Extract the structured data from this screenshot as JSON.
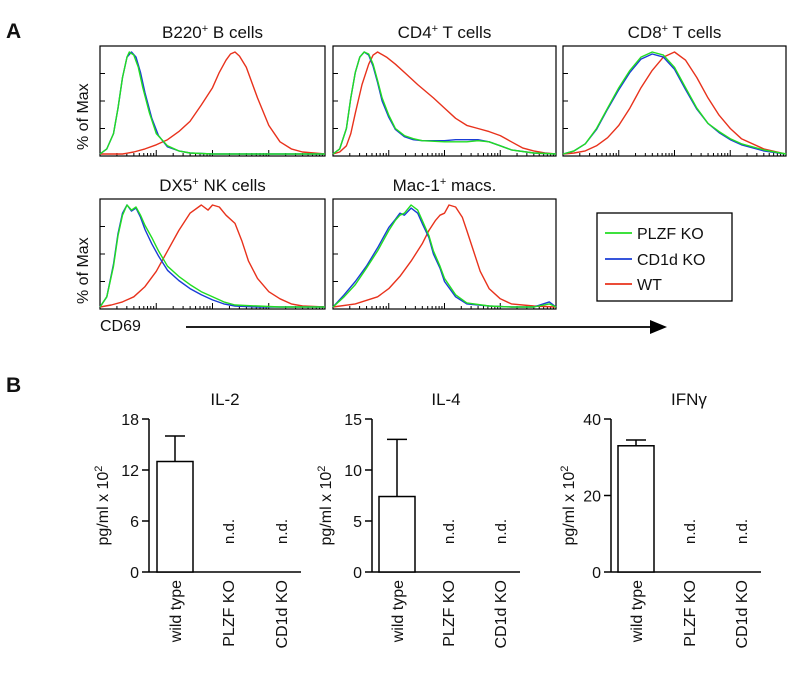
{
  "panel_a": {
    "letter": "A",
    "y_axis_label": "% of Max",
    "x_axis_label": "CD69",
    "legend": [
      {
        "label": "PLZF KO",
        "color": "#22dd22"
      },
      {
        "label": "CD1d KO",
        "color": "#1a3dd6"
      },
      {
        "label": "WT",
        "color": "#e8321c"
      }
    ]
  },
  "panel_b": {
    "letter": "B",
    "y_axis_label": "pg/ml x 10",
    "y_axis_exp": "2",
    "nd_label": "n.d."
  },
  "chart_data": [
    {
      "type": "line",
      "title": "B220+ B cells",
      "title_base": "B220",
      "title_sup": "+",
      "title_rest": " B cells",
      "xlabel": "CD69",
      "ylabel": "% of Max",
      "xlim": [
        0,
        100
      ],
      "ylim": [
        0,
        100
      ],
      "series": [
        {
          "name": "PLZF KO",
          "color": "#22dd22",
          "x": [
            0,
            3,
            6,
            8,
            10,
            12,
            13,
            15,
            17,
            19,
            22,
            25,
            30,
            35,
            40,
            50,
            60,
            70,
            80,
            90,
            100
          ],
          "y": [
            0,
            5,
            20,
            45,
            75,
            95,
            100,
            97,
            85,
            65,
            40,
            20,
            8,
            3,
            1,
            0,
            0,
            0,
            0,
            0,
            0
          ]
        },
        {
          "name": "CD1d KO",
          "color": "#1a3dd6",
          "x": [
            0,
            3,
            6,
            8,
            10,
            12,
            14,
            16,
            18,
            20,
            23,
            26,
            30,
            35,
            40,
            50,
            60,
            70,
            80,
            90,
            100
          ],
          "y": [
            0,
            5,
            20,
            45,
            75,
            95,
            100,
            95,
            80,
            60,
            35,
            18,
            7,
            3,
            1,
            0,
            0,
            0,
            0,
            0,
            0
          ]
        },
        {
          "name": "WT",
          "color": "#e8321c",
          "x": [
            0,
            10,
            15,
            20,
            25,
            30,
            35,
            40,
            45,
            50,
            53,
            56,
            58,
            60,
            62,
            65,
            70,
            75,
            80,
            85,
            90,
            95,
            100
          ],
          "y": [
            0,
            0,
            2,
            5,
            9,
            14,
            22,
            32,
            48,
            65,
            80,
            92,
            98,
            100,
            96,
            85,
            55,
            28,
            12,
            5,
            2,
            1,
            0
          ]
        }
      ]
    },
    {
      "type": "line",
      "title": "CD4+ T cells",
      "title_base": "CD4",
      "title_sup": "+",
      "title_rest": " T cells",
      "xlabel": "CD69",
      "ylabel": "% of Max",
      "xlim": [
        0,
        100
      ],
      "ylim": [
        0,
        100
      ],
      "series": [
        {
          "name": "PLZF KO",
          "color": "#22dd22",
          "x": [
            0,
            3,
            6,
            8,
            10,
            12,
            14,
            16,
            18,
            20,
            22,
            25,
            28,
            32,
            36,
            40,
            50,
            55,
            60,
            65,
            70,
            75,
            80,
            90,
            100
          ],
          "y": [
            0,
            5,
            25,
            55,
            80,
            95,
            100,
            98,
            88,
            72,
            55,
            38,
            25,
            18,
            15,
            13,
            12,
            12,
            12,
            13,
            12,
            8,
            4,
            1,
            0
          ]
        },
        {
          "name": "CD1d KO",
          "color": "#1a3dd6",
          "x": [
            0,
            3,
            6,
            8,
            10,
            12,
            14,
            16,
            18,
            20,
            22,
            25,
            28,
            32,
            36,
            40,
            50,
            55,
            60,
            65,
            70,
            75,
            80,
            90,
            100
          ],
          "y": [
            0,
            5,
            25,
            55,
            80,
            95,
            100,
            97,
            86,
            70,
            52,
            36,
            24,
            17,
            14,
            13,
            13,
            14,
            14,
            14,
            12,
            8,
            4,
            1,
            0
          ]
        },
        {
          "name": "WT",
          "color": "#e8321c",
          "x": [
            0,
            3,
            6,
            8,
            10,
            13,
            16,
            18,
            20,
            24,
            28,
            33,
            38,
            45,
            50,
            55,
            60,
            65,
            70,
            75,
            80,
            85,
            90,
            95,
            100
          ],
          "y": [
            0,
            2,
            8,
            20,
            40,
            68,
            88,
            97,
            100,
            95,
            88,
            78,
            68,
            55,
            45,
            35,
            28,
            25,
            22,
            18,
            12,
            6,
            3,
            1,
            0
          ]
        }
      ]
    },
    {
      "type": "line",
      "title": "CD8+ T cells",
      "title_base": "CD8",
      "title_sup": "+",
      "title_rest": " T cells",
      "xlabel": "CD69",
      "ylabel": "% of Max",
      "xlim": [
        0,
        100
      ],
      "ylim": [
        0,
        100
      ],
      "series": [
        {
          "name": "PLZF KO",
          "color": "#22dd22",
          "x": [
            0,
            5,
            10,
            15,
            20,
            25,
            30,
            35,
            40,
            45,
            50,
            55,
            60,
            65,
            70,
            75,
            80,
            90,
            100
          ],
          "y": [
            0,
            3,
            10,
            25,
            45,
            65,
            82,
            95,
            100,
            97,
            85,
            65,
            45,
            30,
            22,
            15,
            10,
            4,
            0
          ]
        },
        {
          "name": "CD1d KO",
          "color": "#1a3dd6",
          "x": [
            0,
            5,
            10,
            15,
            20,
            25,
            30,
            35,
            40,
            45,
            50,
            55,
            60,
            65,
            70,
            75,
            80,
            90,
            100
          ],
          "y": [
            0,
            3,
            10,
            24,
            44,
            63,
            80,
            93,
            98,
            95,
            83,
            63,
            44,
            30,
            21,
            14,
            9,
            3,
            0
          ]
        },
        {
          "name": "WT",
          "color": "#e8321c",
          "x": [
            0,
            5,
            10,
            15,
            20,
            25,
            30,
            35,
            40,
            45,
            50,
            55,
            60,
            65,
            70,
            75,
            80,
            90,
            100
          ],
          "y": [
            0,
            1,
            3,
            8,
            16,
            28,
            45,
            65,
            82,
            95,
            100,
            92,
            75,
            55,
            38,
            25,
            15,
            5,
            0
          ]
        }
      ]
    },
    {
      "type": "line",
      "title": "DX5+ NK cells",
      "title_base": "DX5",
      "title_sup": "+",
      "title_rest": " NK cells",
      "xlabel": "CD69",
      "ylabel": "% of Max",
      "xlim": [
        0,
        100
      ],
      "ylim": [
        0,
        100
      ],
      "series": [
        {
          "name": "PLZF KO",
          "color": "#22dd22",
          "x": [
            0,
            3,
            6,
            8,
            10,
            12,
            14,
            16,
            18,
            20,
            23,
            26,
            30,
            35,
            40,
            45,
            50,
            55,
            60,
            70,
            80,
            90,
            100
          ],
          "y": [
            0,
            10,
            40,
            70,
            90,
            100,
            95,
            98,
            90,
            80,
            68,
            55,
            40,
            30,
            22,
            15,
            10,
            5,
            2,
            1,
            0,
            0,
            0
          ]
        },
        {
          "name": "CD1d KO",
          "color": "#1a3dd6",
          "x": [
            0,
            3,
            6,
            8,
            10,
            12,
            14,
            16,
            18,
            20,
            23,
            26,
            30,
            35,
            40,
            45,
            50,
            55,
            60,
            70,
            80,
            90,
            100
          ],
          "y": [
            0,
            10,
            42,
            72,
            92,
            100,
            94,
            97,
            88,
            76,
            62,
            50,
            36,
            26,
            18,
            12,
            7,
            3,
            1,
            0,
            0,
            0,
            0
          ]
        },
        {
          "name": "WT",
          "color": "#e8321c",
          "x": [
            0,
            5,
            10,
            15,
            20,
            25,
            30,
            35,
            40,
            45,
            48,
            50,
            53,
            56,
            60,
            63,
            66,
            70,
            75,
            80,
            85,
            90,
            100
          ],
          "y": [
            0,
            2,
            5,
            10,
            20,
            35,
            55,
            75,
            92,
            100,
            95,
            100,
            98,
            90,
            82,
            65,
            45,
            28,
            15,
            8,
            3,
            1,
            0
          ]
        }
      ]
    },
    {
      "type": "line",
      "title": "Mac-1+ macs.",
      "title_base": "Mac-1",
      "title_sup": "+",
      "title_rest": " macs.",
      "xlabel": "CD69",
      "ylabel": "% of Max",
      "xlim": [
        0,
        100
      ],
      "ylim": [
        0,
        100
      ],
      "series": [
        {
          "name": "PLZF KO",
          "color": "#22dd22",
          "x": [
            0,
            5,
            10,
            15,
            20,
            25,
            28,
            30,
            32,
            35,
            38,
            40,
            43,
            45,
            48,
            50,
            55,
            60,
            70,
            80,
            90,
            97,
            100
          ],
          "y": [
            0,
            10,
            22,
            38,
            55,
            75,
            85,
            90,
            92,
            100,
            95,
            85,
            70,
            55,
            40,
            28,
            12,
            4,
            1,
            0,
            0,
            3,
            0
          ]
        },
        {
          "name": "CD1d KO",
          "color": "#1a3dd6",
          "x": [
            0,
            5,
            10,
            15,
            20,
            25,
            28,
            30,
            32,
            35,
            38,
            40,
            43,
            45,
            48,
            50,
            55,
            60,
            70,
            80,
            90,
            97,
            100
          ],
          "y": [
            0,
            12,
            25,
            40,
            58,
            78,
            86,
            92,
            90,
            97,
            92,
            82,
            68,
            52,
            38,
            25,
            10,
            3,
            1,
            0,
            0,
            5,
            0
          ]
        },
        {
          "name": "WT",
          "color": "#e8321c",
          "x": [
            0,
            10,
            20,
            25,
            30,
            35,
            40,
            43,
            46,
            48,
            50,
            52,
            55,
            58,
            60,
            63,
            66,
            70,
            75,
            80,
            90,
            100
          ],
          "y": [
            0,
            3,
            10,
            18,
            30,
            45,
            62,
            75,
            85,
            90,
            92,
            100,
            98,
            88,
            75,
            55,
            35,
            18,
            8,
            3,
            1,
            0
          ]
        }
      ]
    },
    {
      "type": "bar",
      "title": "IL-2",
      "ylabel": "pg/ml x 10^2",
      "categories": [
        "wild type",
        "PLZF KO",
        "CD1d KO"
      ],
      "values": [
        13,
        0,
        0
      ],
      "errors": [
        3,
        0,
        0
      ],
      "annotations": [
        "",
        "n.d.",
        "n.d."
      ],
      "ylim": [
        0,
        18
      ],
      "yticks": [
        0,
        6,
        12,
        18
      ]
    },
    {
      "type": "bar",
      "title": "IL-4",
      "ylabel": "pg/ml x 10^2",
      "categories": [
        "wild type",
        "PLZF KO",
        "CD1d KO"
      ],
      "values": [
        7.4,
        0,
        0
      ],
      "errors": [
        5.6,
        0,
        0
      ],
      "annotations": [
        "",
        "n.d.",
        "n.d."
      ],
      "ylim": [
        0,
        15
      ],
      "yticks": [
        0,
        5,
        10,
        15
      ]
    },
    {
      "type": "bar",
      "title": "IFNγ",
      "ylabel": "pg/ml x 10^2",
      "categories": [
        "wild type",
        "PLZF KO",
        "CD1d KO"
      ],
      "values": [
        33,
        0,
        0
      ],
      "errors": [
        1.5,
        0,
        0
      ],
      "annotations": [
        "",
        "n.d.",
        "n.d."
      ],
      "ylim": [
        0,
        40
      ],
      "yticks": [
        0,
        20,
        40
      ]
    }
  ]
}
